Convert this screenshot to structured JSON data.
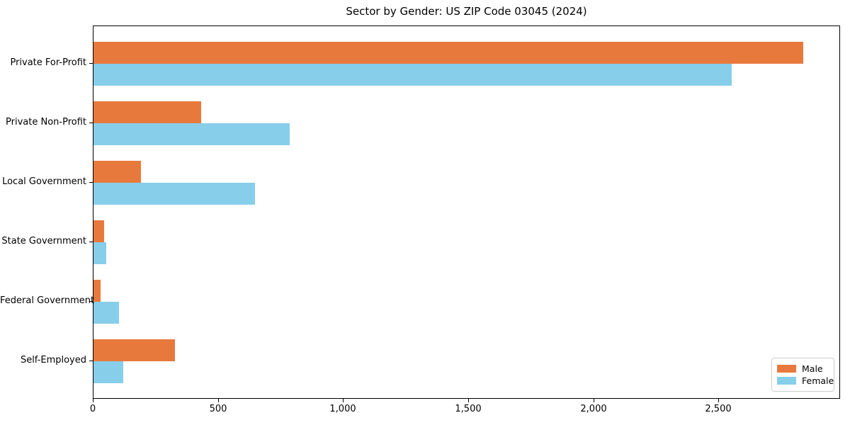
{
  "chart_data": {
    "type": "bar",
    "orientation": "horizontal",
    "title": "Sector by Gender: US ZIP Code 03045 (2024)",
    "categories": [
      "Private For-Profit",
      "Private Non-Profit",
      "Local Government",
      "State Government",
      "Federal Government",
      "Self-Employed"
    ],
    "series": [
      {
        "name": "Male",
        "color": "#e8793c",
        "values": [
          2835,
          430,
          190,
          43,
          28,
          325
        ]
      },
      {
        "name": "Female",
        "color": "#87ceeb",
        "values": [
          2550,
          785,
          645,
          51,
          102,
          120
        ]
      }
    ],
    "xlabel": "",
    "ylabel": "",
    "xlim": [
      0,
      2980
    ],
    "x_ticks": [
      {
        "value": 0,
        "label": "0"
      },
      {
        "value": 500,
        "label": "500"
      },
      {
        "value": 1000,
        "label": "1,000"
      },
      {
        "value": 1500,
        "label": "1,500"
      },
      {
        "value": 2000,
        "label": "2,000"
      },
      {
        "value": 2500,
        "label": "2,500"
      }
    ],
    "grid": false,
    "legend": {
      "position": "lower right"
    }
  }
}
